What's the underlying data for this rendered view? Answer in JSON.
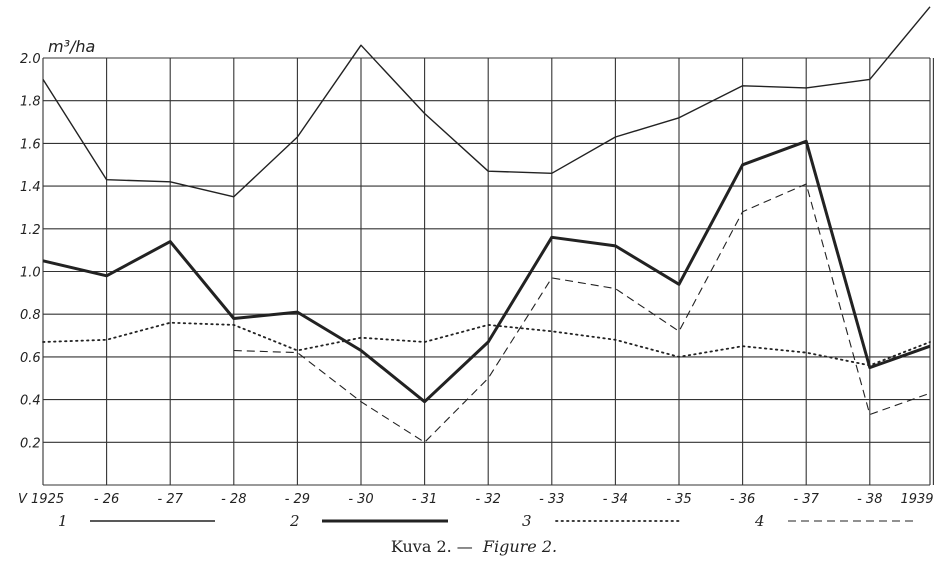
{
  "chart_data": {
    "type": "line",
    "ylabel": "m³/ha",
    "yticks": [
      "0.2",
      "0.4",
      "0.6",
      "0.8",
      "1.0",
      "1.2",
      "1.4",
      "1.6",
      "1.8",
      "2.0"
    ],
    "ytick_values": [
      0.2,
      0.4,
      0.6,
      0.8,
      1.0,
      1.2,
      1.4,
      1.6,
      1.8,
      2.0
    ],
    "ylim": [
      0,
      2.0
    ],
    "x": [
      1925,
      1926,
      1927,
      1928,
      1929,
      1930,
      1931,
      1932,
      1933,
      1934,
      1935,
      1936,
      1937,
      1938,
      1939
    ],
    "xtick_labels": [
      "V 1925",
      "- 26",
      "- 27",
      "- 28",
      "- 29",
      "- 30",
      "- 31",
      "- 32",
      "- 33",
      "- 34",
      "- 35",
      "- 36",
      "- 37",
      "- 38",
      "1939"
    ],
    "grid": true,
    "legend_position": "bottom",
    "series": [
      {
        "name": "1",
        "style": "solid-thin",
        "values": [
          1.9,
          1.43,
          1.42,
          1.35,
          1.63,
          2.06,
          1.74,
          1.47,
          1.46,
          1.63,
          1.72,
          1.87,
          1.86,
          1.9,
          2.24
        ]
      },
      {
        "name": "2",
        "style": "solid-thick",
        "values": [
          1.05,
          0.98,
          1.14,
          0.78,
          0.81,
          0.63,
          0.39,
          0.67,
          1.16,
          1.12,
          0.94,
          1.5,
          1.61,
          0.55,
          0.65
        ]
      },
      {
        "name": "3",
        "style": "dotted",
        "values": [
          0.67,
          0.68,
          0.76,
          0.75,
          0.63,
          0.69,
          0.67,
          0.75,
          0.72,
          0.68,
          0.6,
          0.65,
          0.62,
          0.56,
          0.67
        ]
      },
      {
        "name": "4",
        "style": "dashed",
        "values": [
          null,
          null,
          null,
          0.63,
          0.62,
          0.39,
          0.2,
          0.5,
          0.97,
          0.92,
          0.72,
          1.28,
          1.41,
          0.33,
          0.43
        ]
      }
    ],
    "caption_main": "Kuva 2. —",
    "caption_figure": "Figure 2."
  }
}
